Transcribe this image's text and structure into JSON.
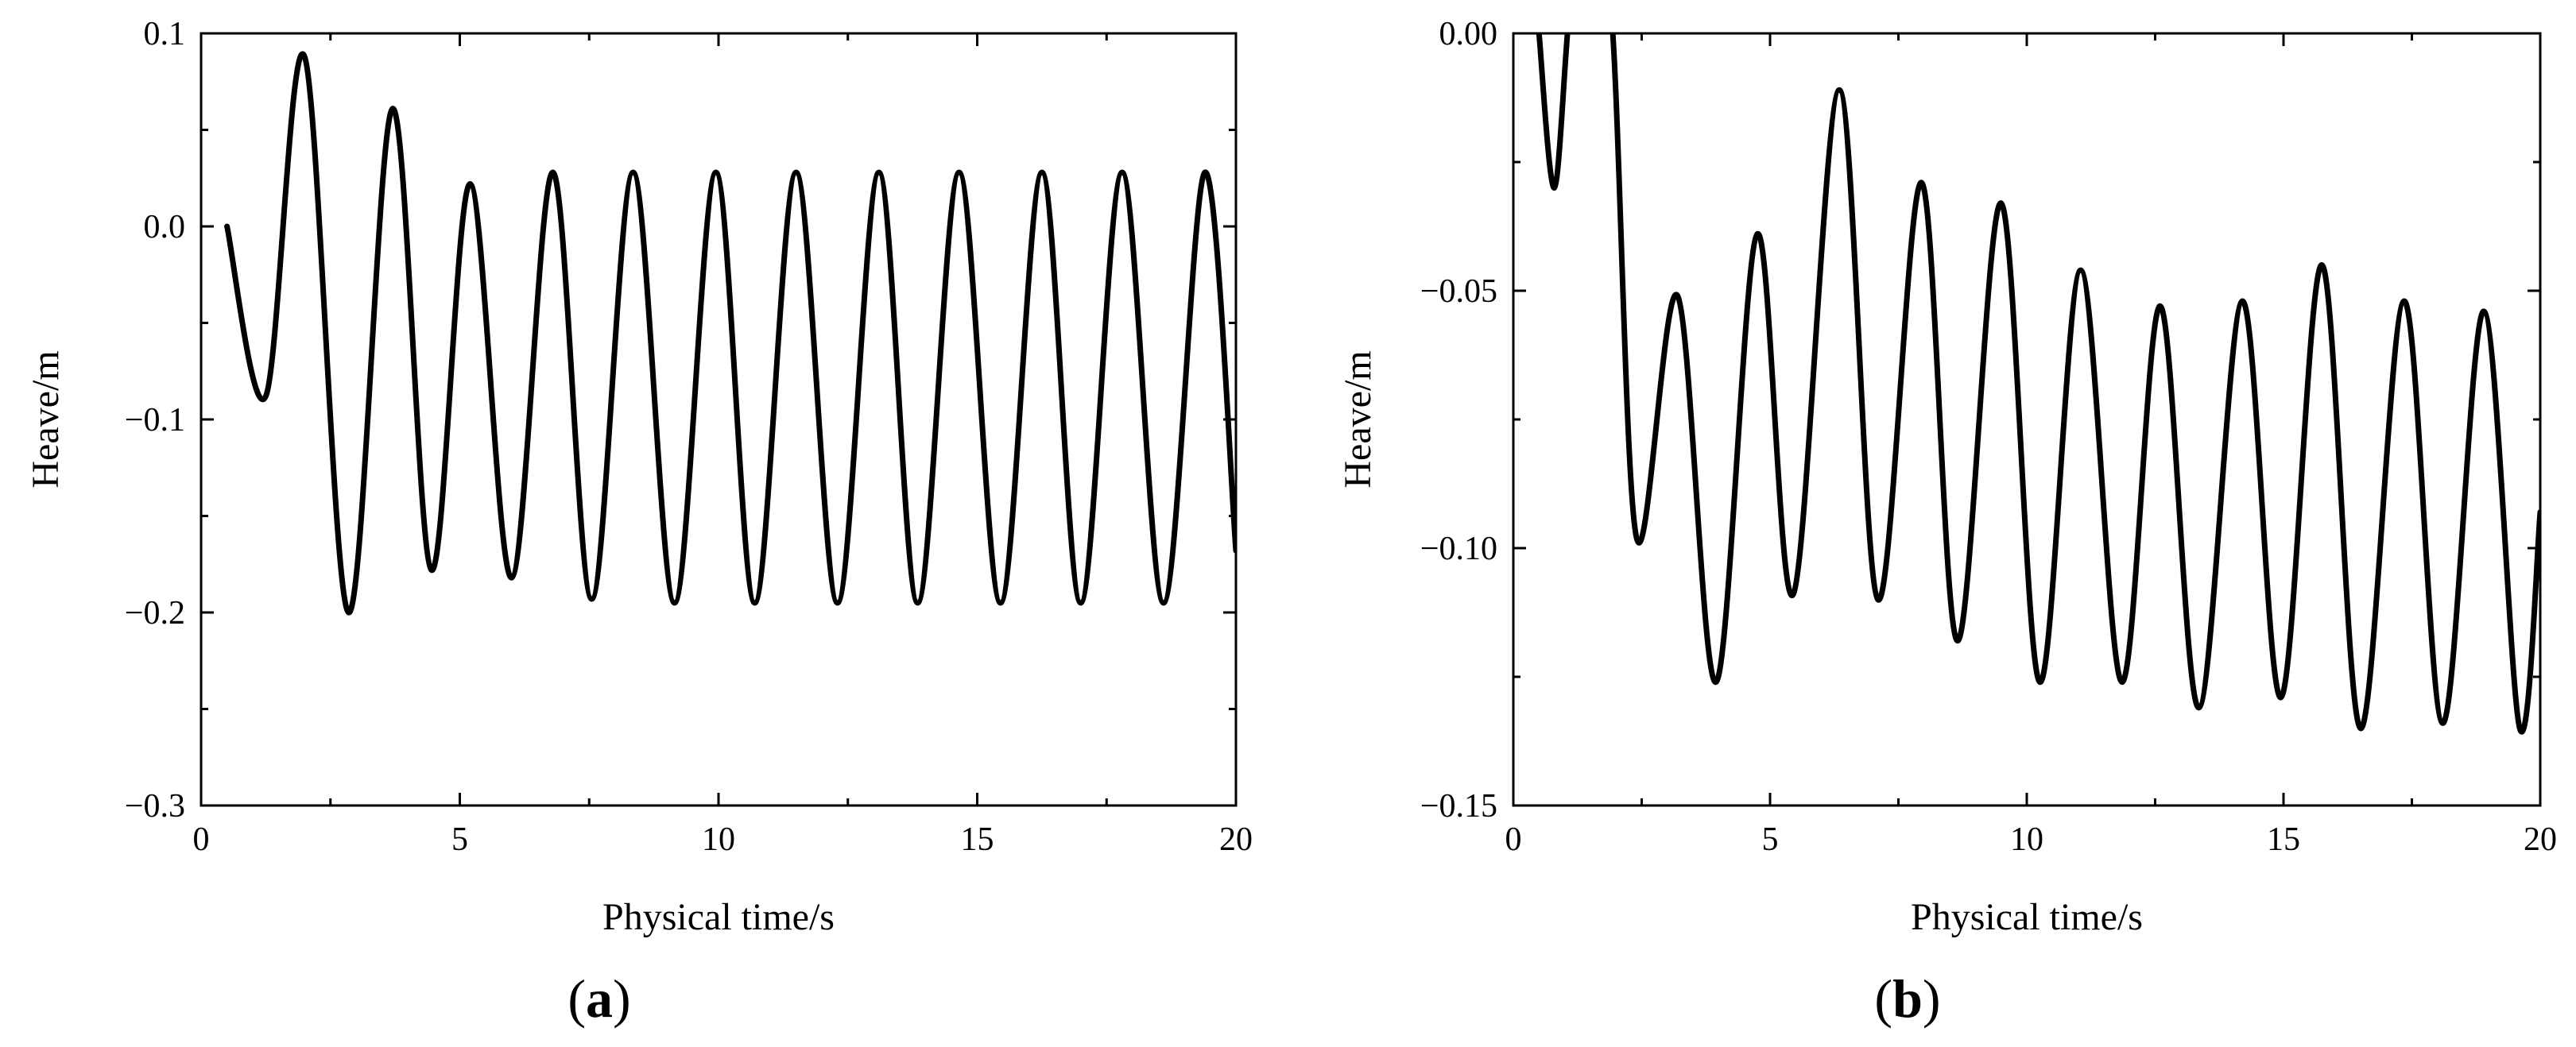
{
  "chart_data": [
    {
      "type": "line",
      "panel_label": "a",
      "xlabel": "Physical time/s",
      "ylabel": "Heave/m",
      "xlim": [
        0,
        20
      ],
      "ylim": [
        -0.3,
        0.1
      ],
      "xticks": [
        0,
        5,
        10,
        15,
        20
      ],
      "xtick_labels": [
        "0",
        "5",
        "10",
        "15",
        "20"
      ],
      "yticks": [
        -0.3,
        -0.2,
        -0.1,
        0.0,
        0.1
      ],
      "ytick_labels": [
        "−0.3",
        "−0.2",
        "−0.1",
        "0.0",
        "0.1"
      ],
      "grid": false,
      "line_color": "#000000",
      "series": [
        {
          "x": [
            0.5,
            1.25,
            2.0,
            2.85,
            3.7,
            4.45,
            5.2,
            6.0,
            6.8,
            7.55,
            8.35,
            9.15,
            9.95,
            10.7,
            11.5,
            12.3,
            13.1,
            13.85,
            14.65,
            15.45,
            16.25,
            17.0,
            17.8,
            18.6,
            19.4,
            20.0
          ],
          "y": [
            0.0,
            -0.088,
            0.088,
            -0.2,
            0.061,
            -0.178,
            0.022,
            -0.182,
            0.028,
            -0.193,
            0.028,
            -0.195,
            0.028,
            -0.195,
            0.028,
            -0.195,
            0.028,
            -0.195,
            0.028,
            -0.195,
            0.028,
            -0.195,
            0.028,
            -0.195,
            0.028,
            -0.168
          ]
        }
      ]
    },
    {
      "type": "line",
      "panel_label": "b",
      "xlabel": "Physical time/s",
      "ylabel": "Heave/m",
      "xlim": [
        0,
        20
      ],
      "ylim": [
        -0.15,
        0.0
      ],
      "xticks": [
        0,
        5,
        10,
        15,
        20
      ],
      "xtick_labels": [
        "0",
        "5",
        "10",
        "15",
        "20"
      ],
      "yticks": [
        -0.15,
        -0.1,
        -0.05,
        0.0
      ],
      "ytick_labels": [
        "−0.15",
        "−0.10",
        "−0.05",
        "0.00"
      ],
      "grid": false,
      "line_color": "#000000",
      "series": [
        {
          "x": [
            0.5,
            0.8,
            1.1,
            1.35,
            1.9,
            2.4,
            3.2,
            3.95,
            4.75,
            5.45,
            6.35,
            7.1,
            7.95,
            8.65,
            9.5,
            10.25,
            11.05,
            11.85,
            12.6,
            13.35,
            14.2,
            14.95,
            15.75,
            16.5,
            17.35,
            18.1,
            18.9,
            19.6,
            20.0
          ],
          "y": [
            0.0,
            -0.03,
            0.005,
            0.012,
            0.005,
            -0.098,
            -0.051,
            -0.126,
            -0.039,
            -0.109,
            -0.011,
            -0.11,
            -0.029,
            -0.118,
            -0.033,
            -0.126,
            -0.046,
            -0.126,
            -0.053,
            -0.131,
            -0.052,
            -0.129,
            -0.045,
            -0.135,
            -0.052,
            -0.134,
            -0.054,
            -0.135,
            -0.093
          ]
        }
      ]
    }
  ]
}
